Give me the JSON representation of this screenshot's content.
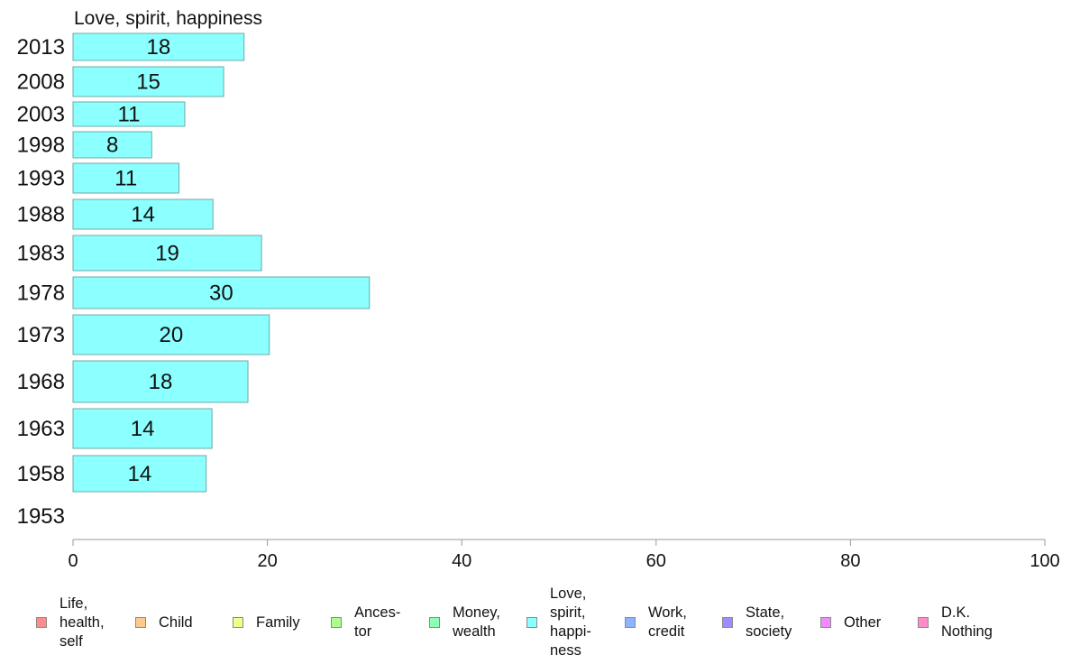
{
  "chart_data": {
    "type": "bar",
    "orientation": "horizontal",
    "title": "Love, spirit, happiness",
    "categories": [
      "2013",
      "2008",
      "2003",
      "1998",
      "1993",
      "1988",
      "1983",
      "1978",
      "1973",
      "1968",
      "1963",
      "1958",
      "1953"
    ],
    "series": [
      {
        "name": "Love, spirit, happiness",
        "color": "#8cffff",
        "values": [
          18,
          15,
          11,
          8,
          11,
          14,
          19,
          30,
          20,
          18,
          14,
          14,
          null
        ],
        "bar_lengths": [
          17.6,
          15.5,
          11.5,
          8.1,
          10.9,
          14.4,
          19.4,
          30.5,
          20.2,
          18.0,
          14.3,
          13.7,
          null
        ]
      }
    ],
    "xlim": [
      0,
      100
    ],
    "xticks": [
      0,
      20,
      40,
      60,
      80,
      100
    ],
    "grid": false,
    "legend_position": "bottom",
    "legend": [
      {
        "label": "Life,\nhealth,\nself",
        "color": "#ff8c8c"
      },
      {
        "label": "Child",
        "color": "#ffc88c"
      },
      {
        "label": "Family",
        "color": "#f0ff8c"
      },
      {
        "label": "Ances-\ntor",
        "color": "#aaff8c"
      },
      {
        "label": "Money,\nwealth",
        "color": "#8cffb4"
      },
      {
        "label": "Love,\nspirit,\nhappi-\nness",
        "color": "#8cffff"
      },
      {
        "label": "Work,\ncredit",
        "color": "#8cb4ff"
      },
      {
        "label": "State,\nsociety",
        "color": "#9c8cff"
      },
      {
        "label": "Other",
        "color": "#f08cff"
      },
      {
        "label": "D.K.\nNothing",
        "color": "#ff8cc8"
      }
    ]
  }
}
